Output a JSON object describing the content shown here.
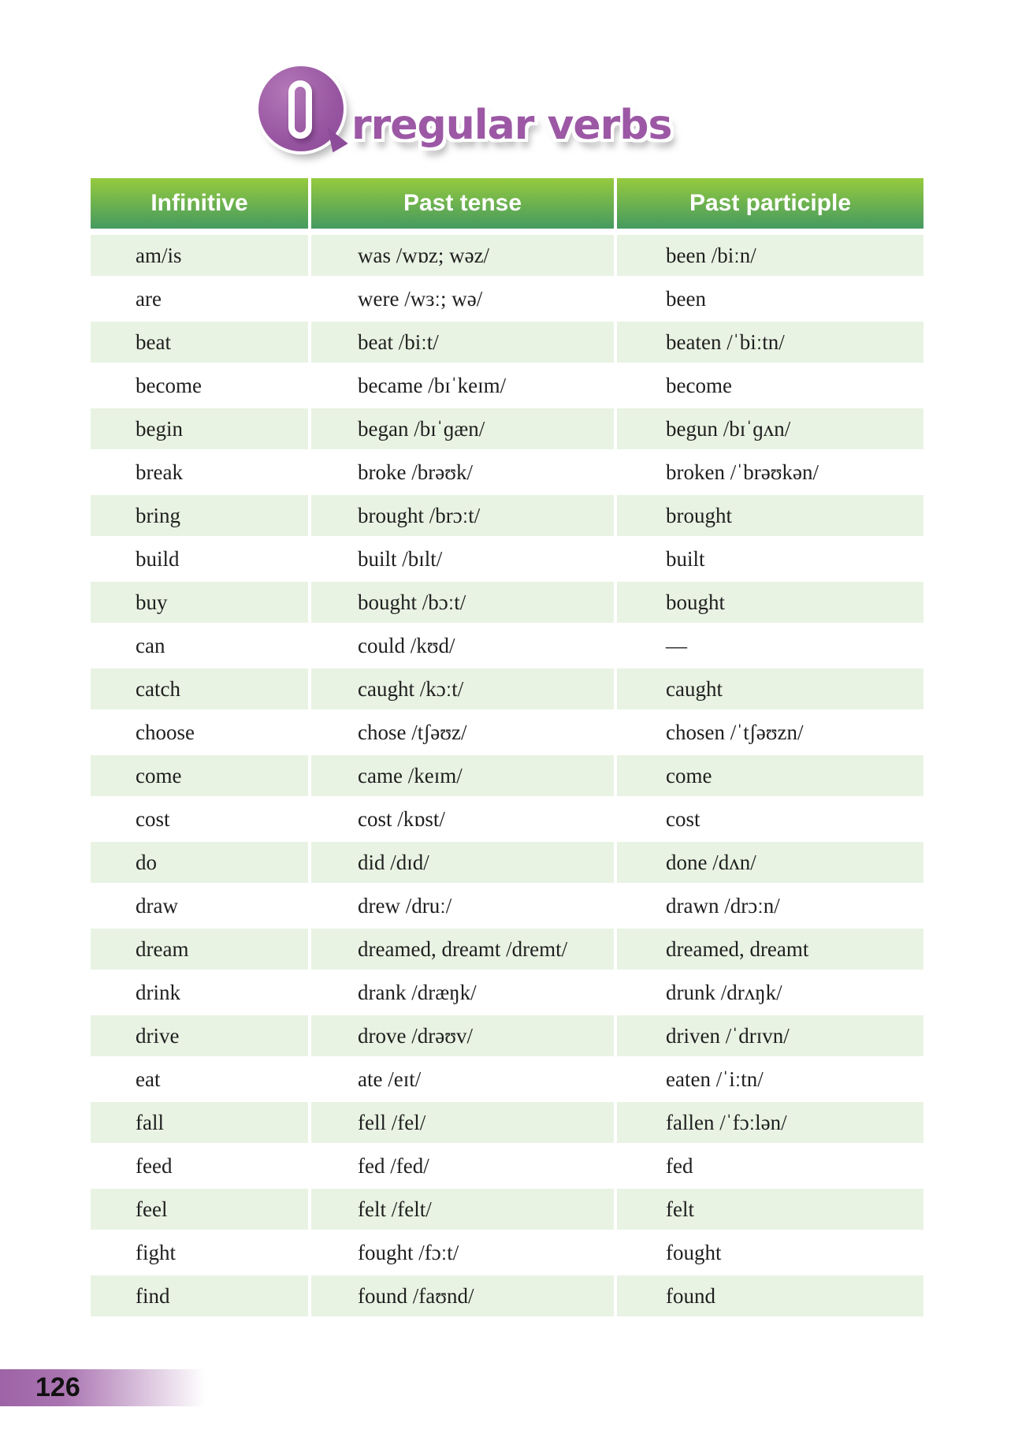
{
  "title": {
    "first_letter": "I",
    "rest": "rregular verbs",
    "full": "Irregular verbs"
  },
  "table": {
    "headers": [
      "Infinitive",
      "Past tense",
      "Past participle"
    ],
    "rows": [
      [
        "am/is",
        "was /wɒz; wəz/",
        "been /biːn/"
      ],
      [
        "are",
        "were /wɜː; wə/",
        "been"
      ],
      [
        "beat",
        "beat /biːt/",
        "beaten /ˈbiːtn/"
      ],
      [
        "become",
        "became /bɪˈkeɪm/",
        "become"
      ],
      [
        "begin",
        "began /bɪˈɡæn/",
        "begun /bɪˈɡʌn/"
      ],
      [
        "break",
        "broke /brəʊk/",
        "broken /ˈbrəʊkən/"
      ],
      [
        "bring",
        "brought /brɔːt/",
        "brought"
      ],
      [
        "build",
        "built /bɪlt/",
        "built"
      ],
      [
        "buy",
        "bought /bɔːt/",
        "bought"
      ],
      [
        "can",
        "could /kʊd/",
        "—"
      ],
      [
        "catch",
        "caught /kɔːt/",
        "caught"
      ],
      [
        "choose",
        "chose /tʃəʊz/",
        "chosen /ˈtʃəʊzn/"
      ],
      [
        "come",
        "came /keɪm/",
        "come"
      ],
      [
        "cost",
        "cost /kɒst/",
        "cost"
      ],
      [
        "do",
        "did /dɪd/",
        "done /dʌn/"
      ],
      [
        "draw",
        "drew /druː/",
        "drawn /drɔːn/"
      ],
      [
        "dream",
        "dreamed, dreamt /dremt/",
        "dreamed, dreamt"
      ],
      [
        "drink",
        "drank /dræŋk/",
        "drunk /drʌŋk/"
      ],
      [
        "drive",
        "drove /drəʊv/",
        "driven /ˈdrɪvn/"
      ],
      [
        "eat",
        "ate /eɪt/",
        "eaten /ˈiːtn/"
      ],
      [
        "fall",
        "fell /fel/",
        "fallen /ˈfɔːlən/"
      ],
      [
        "feed",
        "fed /fed/",
        "fed"
      ],
      [
        "feel",
        "felt /felt/",
        "felt"
      ],
      [
        "fight",
        "fought /fɔːt/",
        "fought"
      ],
      [
        "find",
        "found /faʊnd/",
        "found"
      ]
    ]
  },
  "footer": {
    "page_number": "126"
  },
  "colors": {
    "header_green_top": "#96ca3e",
    "header_green_bottom": "#459a60",
    "row_green": "#e9f3e3",
    "title_purple": "#9c58a5",
    "page_bar_purple": "#9d63a6"
  }
}
